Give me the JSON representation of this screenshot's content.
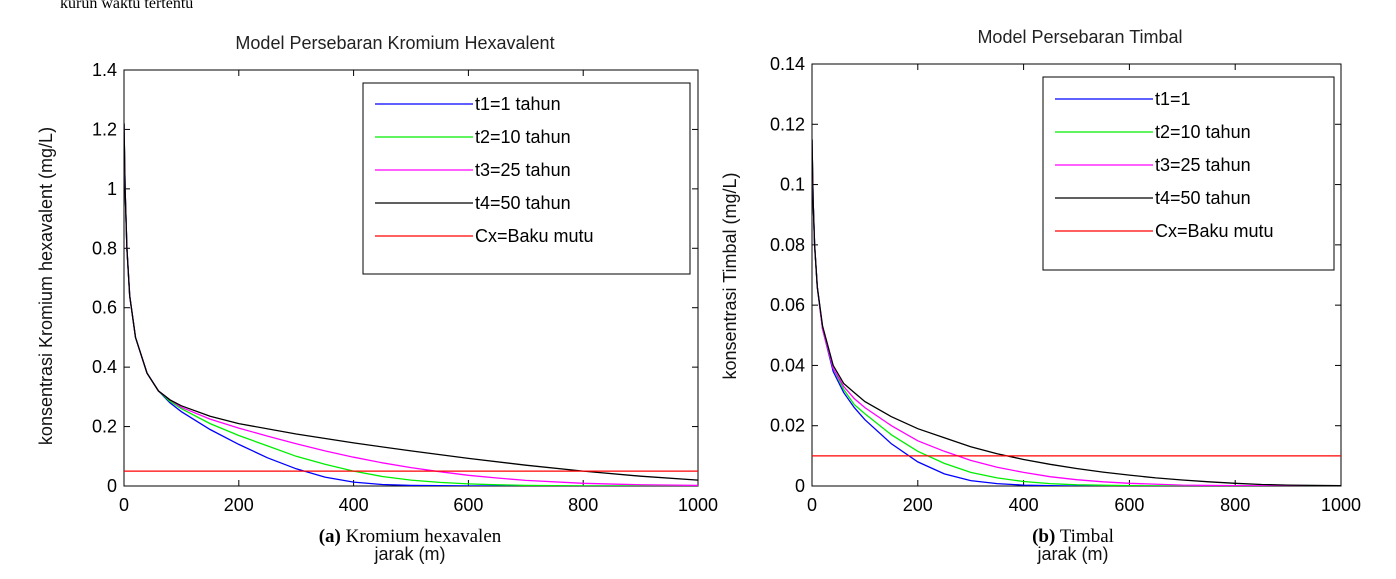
{
  "header_fragment": "kurun waktu tertentu",
  "chart_data": [
    {
      "type": "line",
      "title": "Model Persebaran Kromium Hexavalent",
      "xlabel": "jarak (m)",
      "ylabel": "konsentrasi Kromium hexavalent (mg/L)",
      "xlim": [
        0,
        1000
      ],
      "ylim": [
        0,
        1.4
      ],
      "xticks": [
        "0",
        "200",
        "400",
        "600",
        "800",
        "1000"
      ],
      "yticks": [
        "0",
        "0.2",
        "0.4",
        "0.6",
        "0.8",
        "1",
        "1.2",
        "1.4"
      ],
      "grid": false,
      "legend_position": "top-right",
      "caption_tag": "(a)",
      "caption_text": " Kromium hexavalen",
      "series": [
        {
          "name": "t1=1 tahun",
          "color": "#0000ff",
          "x": [
            0,
            2,
            5,
            10,
            20,
            40,
            60,
            80,
            100,
            150,
            200,
            250,
            300,
            350,
            400,
            450,
            500,
            550,
            600,
            650,
            700,
            800,
            1000
          ],
          "y": [
            1.22,
            1.0,
            0.8,
            0.64,
            0.5,
            0.38,
            0.32,
            0.28,
            0.25,
            0.19,
            0.14,
            0.095,
            0.058,
            0.03,
            0.013,
            0.005,
            0.002,
            0.001,
            0.0005,
            0.0002,
            0.0001,
            0,
            0
          ]
        },
        {
          "name": "t2=10 tahun",
          "color": "#00ee00",
          "x": [
            0,
            2,
            5,
            10,
            20,
            40,
            60,
            80,
            100,
            150,
            200,
            250,
            300,
            350,
            400,
            450,
            500,
            550,
            600,
            650,
            700,
            800,
            1000
          ],
          "y": [
            1.22,
            1.0,
            0.8,
            0.64,
            0.5,
            0.38,
            0.32,
            0.285,
            0.26,
            0.21,
            0.17,
            0.135,
            0.1,
            0.073,
            0.05,
            0.032,
            0.02,
            0.012,
            0.007,
            0.004,
            0.002,
            0.0005,
            0
          ]
        },
        {
          "name": "t3=25 tahun",
          "color": "#ff00ff",
          "x": [
            0,
            2,
            5,
            10,
            20,
            40,
            60,
            80,
            100,
            150,
            200,
            250,
            300,
            350,
            400,
            450,
            500,
            550,
            600,
            650,
            700,
            800,
            900,
            1000
          ],
          "y": [
            1.22,
            1.0,
            0.8,
            0.64,
            0.5,
            0.38,
            0.32,
            0.29,
            0.265,
            0.225,
            0.195,
            0.168,
            0.142,
            0.118,
            0.097,
            0.078,
            0.062,
            0.048,
            0.036,
            0.027,
            0.019,
            0.009,
            0.004,
            0.002
          ]
        },
        {
          "name": "t4=50 tahun",
          "color": "#000000",
          "x": [
            0,
            2,
            5,
            10,
            20,
            40,
            60,
            80,
            100,
            150,
            200,
            300,
            400,
            500,
            600,
            700,
            800,
            900,
            1000
          ],
          "y": [
            1.22,
            1.0,
            0.8,
            0.64,
            0.5,
            0.38,
            0.32,
            0.29,
            0.27,
            0.235,
            0.21,
            0.175,
            0.145,
            0.118,
            0.093,
            0.07,
            0.05,
            0.033,
            0.02
          ]
        },
        {
          "name": "Cx=Baku mutu",
          "color": "#ff0000",
          "x": [
            0,
            1000
          ],
          "y": [
            0.05,
            0.05
          ]
        }
      ]
    },
    {
      "type": "line",
      "title": "Model Persebaran Timbal",
      "xlabel": "jarak (m)",
      "ylabel": "konsentrasi Timbal (mg/L)",
      "xlim": [
        0,
        1000
      ],
      "ylim": [
        0,
        0.14
      ],
      "xticks": [
        "0",
        "200",
        "400",
        "600",
        "800",
        "1000"
      ],
      "yticks": [
        "0",
        "0.02",
        "0.04",
        "0.06",
        "0.08",
        "0.1",
        "0.12",
        "0.14"
      ],
      "grid": false,
      "legend_position": "top-right",
      "caption_tag": "(b)",
      "caption_text": " Timbal",
      "series": [
        {
          "name": "t1=1",
          "color": "#0000ff",
          "x": [
            0,
            2,
            5,
            10,
            20,
            40,
            60,
            80,
            100,
            150,
            200,
            250,
            300,
            350,
            400,
            450,
            500,
            600,
            1000
          ],
          "y": [
            0.115,
            0.095,
            0.08,
            0.066,
            0.052,
            0.038,
            0.031,
            0.026,
            0.022,
            0.014,
            0.008,
            0.004,
            0.0018,
            0.0008,
            0.0003,
            0.0001,
            0,
            0,
            0
          ]
        },
        {
          "name": "t2=10 tahun",
          "color": "#00ee00",
          "x": [
            0,
            2,
            5,
            10,
            20,
            40,
            60,
            80,
            100,
            150,
            200,
            250,
            300,
            350,
            400,
            450,
            500,
            600,
            700,
            1000
          ],
          "y": [
            0.115,
            0.095,
            0.08,
            0.066,
            0.052,
            0.039,
            0.032,
            0.027,
            0.024,
            0.017,
            0.0115,
            0.0075,
            0.0045,
            0.0027,
            0.0015,
            0.0008,
            0.0004,
            0.0001,
            0,
            0
          ]
        },
        {
          "name": "t3=25 tahun",
          "color": "#ff00ff",
          "x": [
            0,
            2,
            5,
            10,
            20,
            40,
            60,
            80,
            100,
            150,
            200,
            250,
            300,
            350,
            400,
            450,
            500,
            550,
            600,
            700,
            800,
            1000
          ],
          "y": [
            0.115,
            0.095,
            0.08,
            0.066,
            0.052,
            0.039,
            0.033,
            0.029,
            0.026,
            0.02,
            0.015,
            0.0115,
            0.0085,
            0.0062,
            0.0045,
            0.0031,
            0.0021,
            0.0014,
            0.0009,
            0.0003,
            0.0001,
            0
          ]
        },
        {
          "name": "t4=50 tahun",
          "color": "#000000",
          "x": [
            0,
            2,
            5,
            10,
            20,
            40,
            60,
            80,
            100,
            150,
            200,
            250,
            300,
            350,
            400,
            450,
            500,
            550,
            600,
            650,
            700,
            750,
            800,
            850,
            900,
            1000
          ],
          "y": [
            0.115,
            0.095,
            0.08,
            0.066,
            0.053,
            0.04,
            0.034,
            0.031,
            0.028,
            0.023,
            0.019,
            0.016,
            0.013,
            0.0107,
            0.0088,
            0.0072,
            0.0058,
            0.0046,
            0.0036,
            0.0027,
            0.002,
            0.0014,
            0.0009,
            0.0005,
            0.0003,
            0.0001
          ]
        },
        {
          "name": "Cx=Baku mutu",
          "color": "#ff0000",
          "x": [
            0,
            1000
          ],
          "y": [
            0.01,
            0.01
          ]
        }
      ]
    }
  ]
}
